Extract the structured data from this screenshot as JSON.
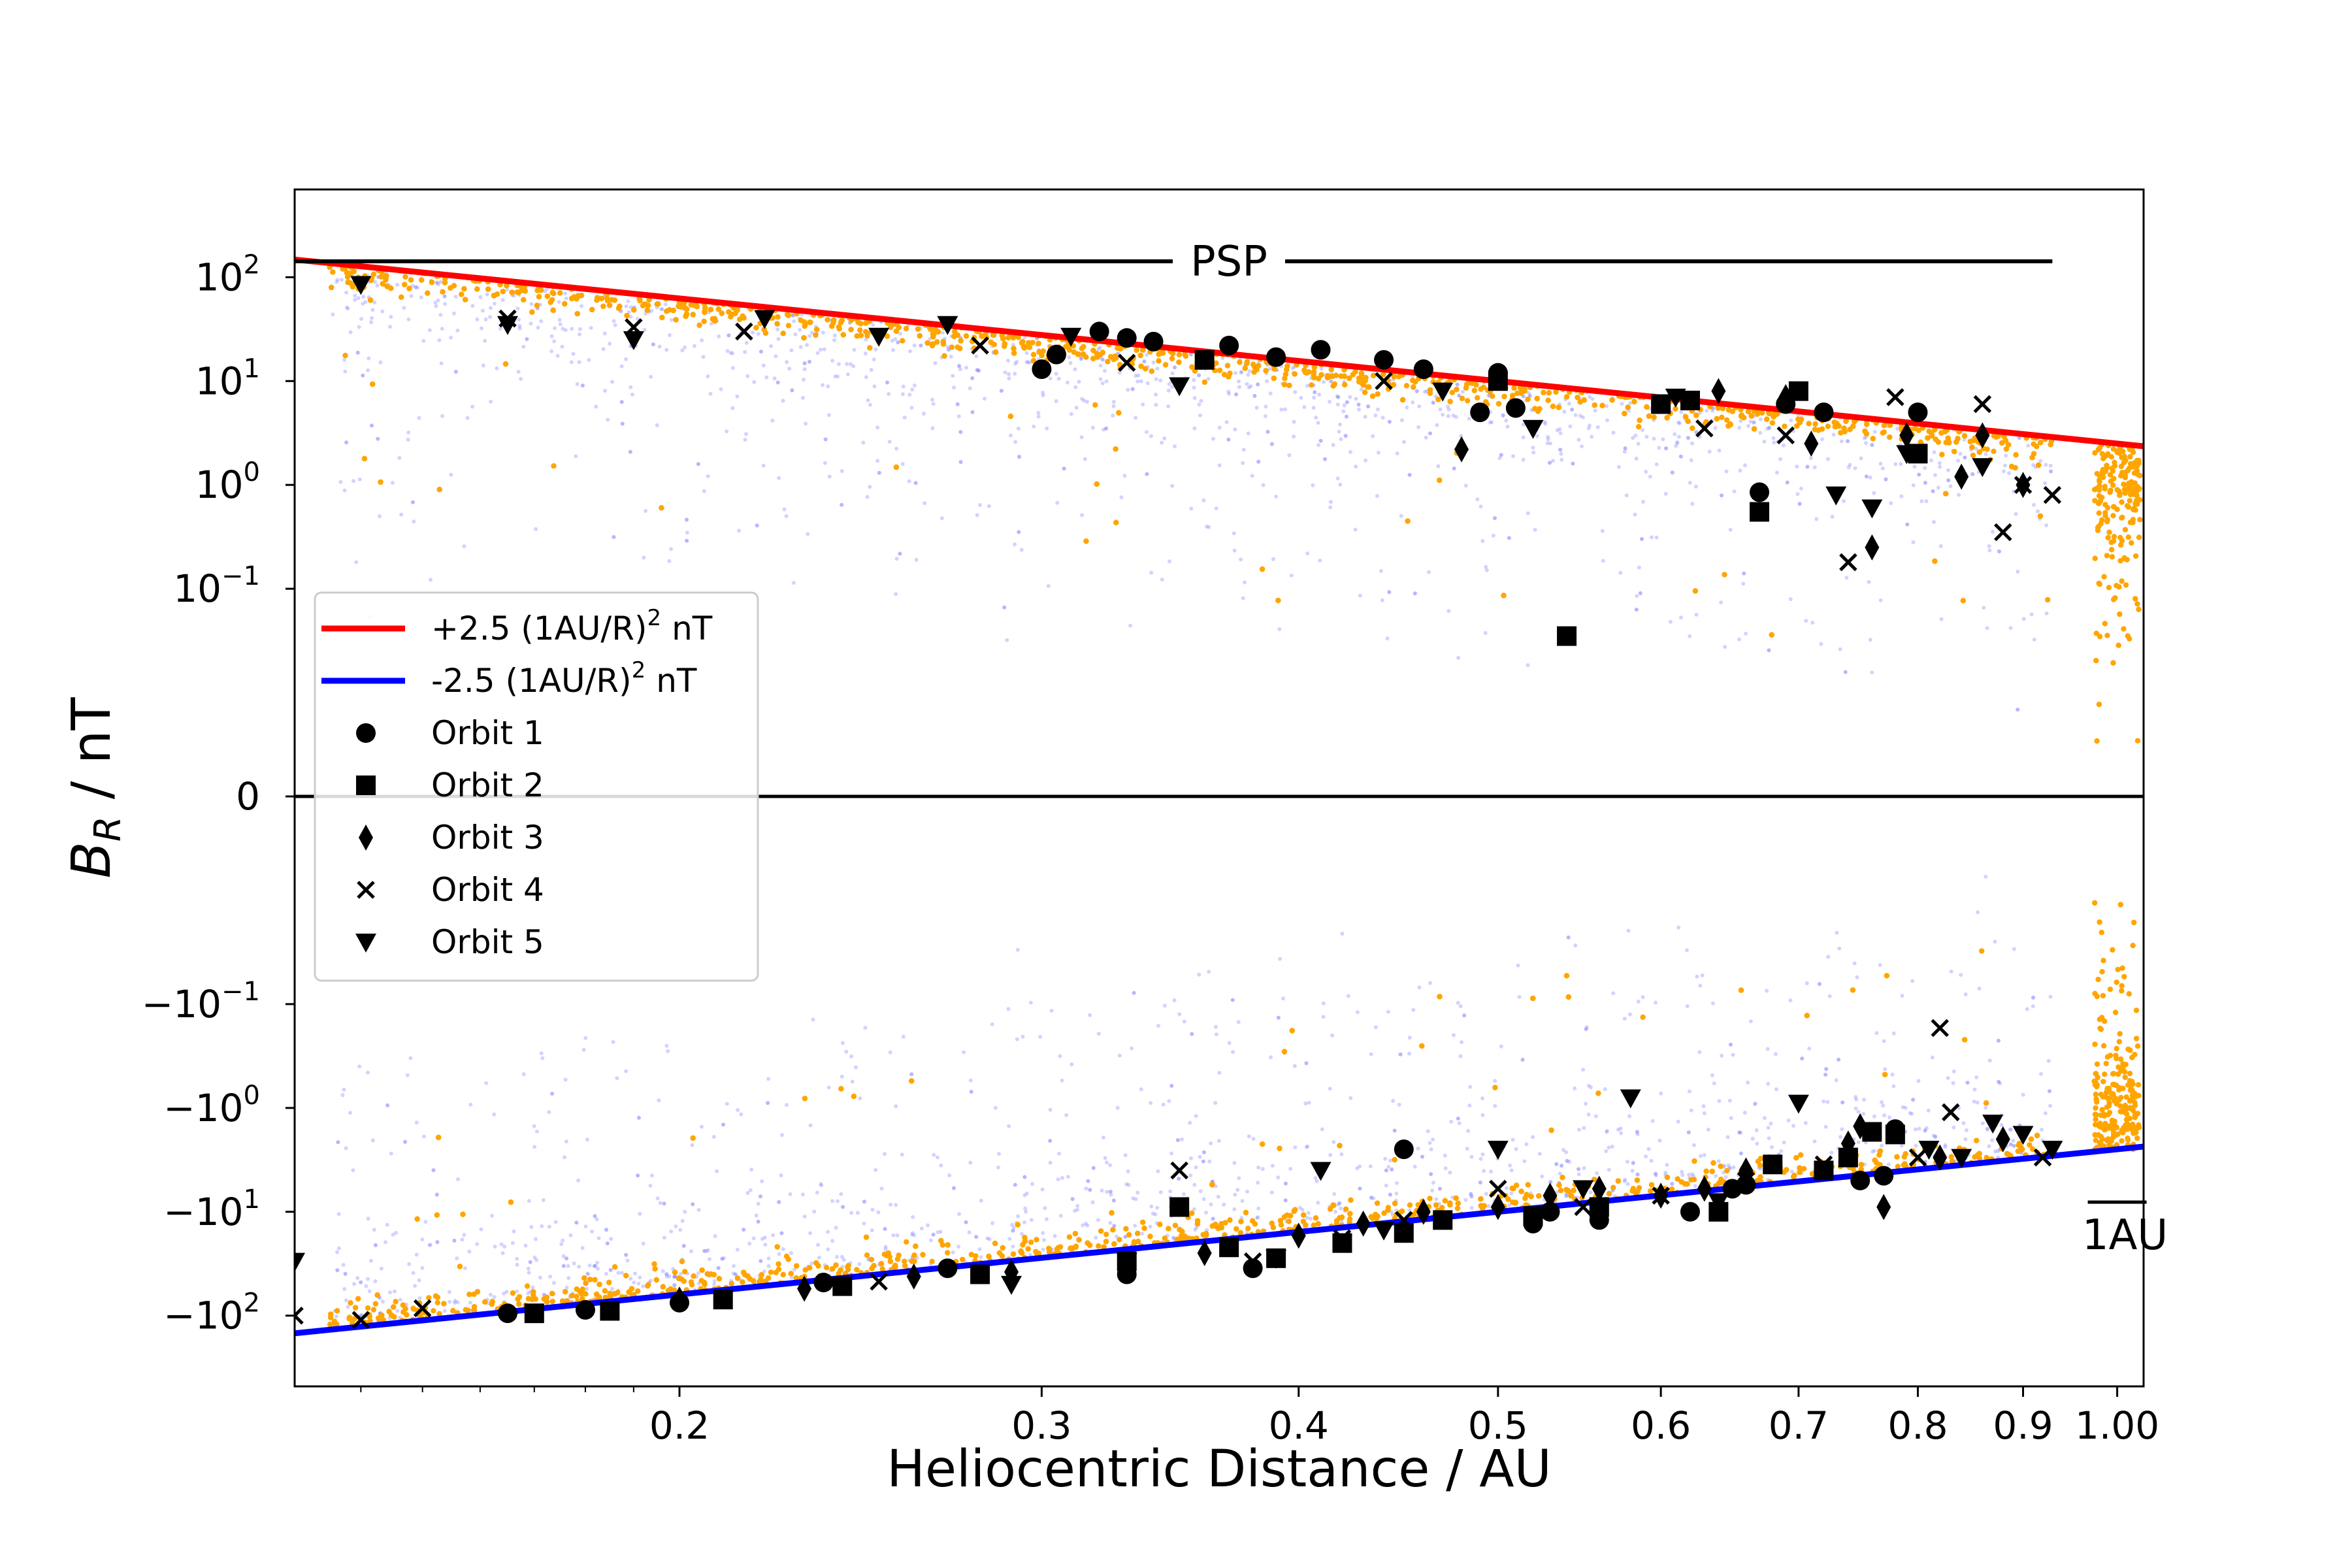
{
  "chart_data": {
    "type": "scatter",
    "title": "",
    "xlabel": "Heliocentric Distance / AU",
    "ylabel_main": "B",
    "ylabel_sub": "R",
    "ylabel_rest": " / nT",
    "x_scale": "log",
    "y_scale": "symlog",
    "xlim": [
      0.13,
      1.03
    ],
    "ylim": [
      -480,
      700
    ],
    "linthresh": 0.01,
    "x_ticks": [
      {
        "v": 0.2,
        "label": "0.2"
      },
      {
        "v": 0.3,
        "label": "0.3"
      },
      {
        "v": 0.4,
        "label": "0.4"
      },
      {
        "v": 0.5,
        "label": "0.5"
      },
      {
        "v": 0.6,
        "label": "0.6"
      },
      {
        "v": 0.7,
        "label": "0.7"
      },
      {
        "v": 0.8,
        "label": "0.8"
      },
      {
        "v": 0.9,
        "label": "0.9"
      },
      {
        "v": 1.0,
        "label": "1.00"
      }
    ],
    "y_ticks": [
      {
        "v": 100,
        "sign": "",
        "exp": "2"
      },
      {
        "v": 10,
        "sign": "",
        "exp": "1"
      },
      {
        "v": 1,
        "sign": "",
        "exp": "0"
      },
      {
        "v": 0.1,
        "sign": "",
        "exp": "−1"
      },
      {
        "v": 0,
        "zero": "0"
      },
      {
        "v": -0.1,
        "sign": "−",
        "exp": "−1"
      },
      {
        "v": -1,
        "sign": "−",
        "exp": "0"
      },
      {
        "v": -10,
        "sign": "−",
        "exp": "1"
      },
      {
        "v": -100,
        "sign": "−",
        "exp": "2"
      }
    ],
    "tick_base": "10",
    "psp_label": "PSP",
    "psp_span": [
      0.13,
      0.93
    ],
    "one_au_label": "1AU",
    "colors": {
      "positive_fit": "#ff0000",
      "negative_fit": "#0000ff",
      "psp_points": "#ffa500",
      "raw_points": "#8080ff",
      "markers": "#000000"
    },
    "series": [
      {
        "name": "+2.5 (1AU/R)² nT",
        "label_main": "+2.5 (1AU/R)",
        "label_sup": "2",
        "label_tail": " nT",
        "kind": "line",
        "color": "#ff0000",
        "formula_coeff": 2.5
      },
      {
        "name": "-2.5 (1AU/R)² nT",
        "label_main": "-2.5 (1AU/R)",
        "label_sup": "2",
        "label_tail": " nT",
        "kind": "line",
        "color": "#0000ff",
        "formula_coeff": -2.5
      },
      {
        "name": "Orbit 1",
        "marker": "circle",
        "points": [
          [
            0.165,
            -95
          ],
          [
            0.18,
            -88
          ],
          [
            0.2,
            -75
          ],
          [
            0.235,
            -48
          ],
          [
            0.27,
            -35
          ],
          [
            0.3,
            13
          ],
          [
            0.305,
            18
          ],
          [
            0.32,
            30
          ],
          [
            0.33,
            26
          ],
          [
            0.34,
            24
          ],
          [
            0.37,
            22
          ],
          [
            0.39,
            17
          ],
          [
            0.41,
            20
          ],
          [
            0.44,
            16
          ],
          [
            0.46,
            13
          ],
          [
            0.49,
            5
          ],
          [
            0.5,
            12
          ],
          [
            0.51,
            5.5
          ],
          [
            0.53,
            -10
          ],
          [
            0.56,
            -12
          ],
          [
            0.62,
            -10
          ],
          [
            0.65,
            -6
          ],
          [
            0.66,
            -5.5
          ],
          [
            0.67,
            0.85
          ],
          [
            0.69,
            6
          ],
          [
            0.72,
            5
          ],
          [
            0.75,
            -5
          ],
          [
            0.77,
            -4.5
          ],
          [
            0.78,
            -1.6
          ],
          [
            0.8,
            5
          ],
          [
            0.45,
            -2.5
          ],
          [
            0.33,
            -40
          ],
          [
            0.38,
            -35
          ],
          [
            0.52,
            -13
          ]
        ]
      },
      {
        "name": "Orbit 2",
        "marker": "square",
        "points": [
          [
            0.17,
            -95
          ],
          [
            0.185,
            -90
          ],
          [
            0.21,
            -70
          ],
          [
            0.24,
            -52
          ],
          [
            0.28,
            -40
          ],
          [
            0.33,
            -30
          ],
          [
            0.35,
            -9
          ],
          [
            0.37,
            -22
          ],
          [
            0.39,
            -28
          ],
          [
            0.42,
            -20
          ],
          [
            0.45,
            -16
          ],
          [
            0.47,
            -12
          ],
          [
            0.5,
            10
          ],
          [
            0.52,
            -11
          ],
          [
            0.54,
            0.035
          ],
          [
            0.56,
            -9
          ],
          [
            0.6,
            6
          ],
          [
            0.64,
            -10
          ],
          [
            0.67,
            0.55
          ],
          [
            0.7,
            8
          ],
          [
            0.72,
            -4
          ],
          [
            0.74,
            -3
          ],
          [
            0.76,
            -1.7
          ],
          [
            0.78,
            -1.8
          ],
          [
            0.8,
            2
          ],
          [
            0.68,
            -3.5
          ],
          [
            0.62,
            6.5
          ],
          [
            0.36,
            16
          ]
        ]
      },
      {
        "name": "Orbit 3",
        "marker": "diamond",
        "points": [
          [
            0.2,
            -70
          ],
          [
            0.23,
            -55
          ],
          [
            0.26,
            -42
          ],
          [
            0.29,
            -38
          ],
          [
            0.33,
            -33
          ],
          [
            0.36,
            -25
          ],
          [
            0.4,
            -17
          ],
          [
            0.43,
            -13
          ],
          [
            0.46,
            -10
          ],
          [
            0.48,
            2.2
          ],
          [
            0.5,
            -9
          ],
          [
            0.53,
            -7
          ],
          [
            0.56,
            -6
          ],
          [
            0.6,
            -7
          ],
          [
            0.63,
            -6
          ],
          [
            0.66,
            -4
          ],
          [
            0.69,
            7
          ],
          [
            0.71,
            2.5
          ],
          [
            0.74,
            -2.2
          ],
          [
            0.76,
            0.25
          ],
          [
            0.77,
            -9
          ],
          [
            0.79,
            3
          ],
          [
            0.82,
            -3
          ],
          [
            0.84,
            1.2
          ],
          [
            0.86,
            3
          ],
          [
            0.88,
            -2
          ],
          [
            0.9,
            1
          ],
          [
            0.75,
            -1.5
          ],
          [
            0.64,
            8
          ]
        ]
      },
      {
        "name": "Orbit 4",
        "marker": "x",
        "points": [
          [
            0.13,
            -100
          ],
          [
            0.14,
            -110
          ],
          [
            0.15,
            -85
          ],
          [
            0.165,
            40
          ],
          [
            0.19,
            33
          ],
          [
            0.215,
            30
          ],
          [
            0.25,
            -47
          ],
          [
            0.28,
            22
          ],
          [
            0.33,
            15
          ],
          [
            0.35,
            -4
          ],
          [
            0.38,
            -30
          ],
          [
            0.42,
            -18
          ],
          [
            0.45,
            -12
          ],
          [
            0.5,
            -6
          ],
          [
            0.55,
            -9
          ],
          [
            0.6,
            -7
          ],
          [
            0.63,
            3.5
          ],
          [
            0.66,
            -5
          ],
          [
            0.69,
            3
          ],
          [
            0.72,
            -3.5
          ],
          [
            0.74,
            0.18
          ],
          [
            0.78,
            7
          ],
          [
            0.8,
            -3
          ],
          [
            0.82,
            -0.17
          ],
          [
            0.83,
            -1.1
          ],
          [
            0.86,
            6
          ],
          [
            0.88,
            0.35
          ],
          [
            0.9,
            1
          ],
          [
            0.92,
            -3
          ],
          [
            0.93,
            0.8
          ],
          [
            0.44,
            10
          ]
        ]
      },
      {
        "name": "Orbit 5",
        "marker": "triangle_down",
        "points": [
          [
            0.13,
            -30
          ],
          [
            0.14,
            85
          ],
          [
            0.165,
            35
          ],
          [
            0.19,
            25
          ],
          [
            0.22,
            40
          ],
          [
            0.25,
            27
          ],
          [
            0.27,
            35
          ],
          [
            0.29,
            -50
          ],
          [
            0.31,
            27
          ],
          [
            0.33,
            -30
          ],
          [
            0.35,
            9
          ],
          [
            0.39,
            -28
          ],
          [
            0.41,
            -4
          ],
          [
            0.44,
            -15
          ],
          [
            0.47,
            8
          ],
          [
            0.5,
            -2.5
          ],
          [
            0.52,
            3.5
          ],
          [
            0.55,
            -6
          ],
          [
            0.58,
            -0.8
          ],
          [
            0.61,
            7
          ],
          [
            0.64,
            -8
          ],
          [
            0.7,
            -0.9
          ],
          [
            0.73,
            0.8
          ],
          [
            0.76,
            0.6
          ],
          [
            0.79,
            2
          ],
          [
            0.81,
            -2.5
          ],
          [
            0.84,
            -3
          ],
          [
            0.87,
            -1.4
          ],
          [
            0.9,
            -1.8
          ],
          [
            0.93,
            -2.5
          ],
          [
            0.86,
            1.5
          ]
        ]
      }
    ]
  }
}
